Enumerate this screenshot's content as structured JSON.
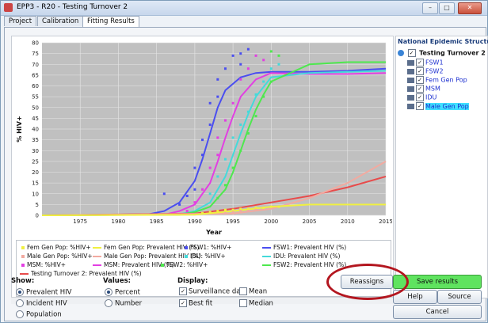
{
  "window": {
    "title": "EPP3 - R20 - Testing Turnover 2",
    "buttons": [
      "–",
      "□",
      "✕"
    ]
  },
  "tabs": [
    "Project",
    "Calibration",
    "Fitting Results"
  ],
  "active_tab": "Fitting Results",
  "chart_data": {
    "type": "line",
    "title": "",
    "xlabel": "Year",
    "ylabel": "% HIV+",
    "xlim": [
      1970,
      2015
    ],
    "ylim": [
      0,
      80
    ],
    "xticks": [
      1975,
      1980,
      1985,
      1990,
      1995,
      2000,
      2005,
      2010,
      2015
    ],
    "yticks": [
      0,
      5,
      10,
      15,
      20,
      25,
      30,
      35,
      40,
      45,
      50,
      55,
      60,
      65,
      70,
      75,
      80
    ],
    "grid": true,
    "series": [
      {
        "name": "FSW1: Prevalent HIV (%)",
        "color": "#4a4ef0",
        "x": [
          1970,
          1984,
          1986,
          1988,
          1990,
          1991,
          1992,
          1993,
          1994,
          1996,
          1998,
          2000,
          2005,
          2010,
          2015
        ],
        "y": [
          0,
          0.5,
          2,
          6,
          16,
          26,
          38,
          50,
          58,
          64,
          66,
          66.5,
          66.5,
          67,
          68
        ]
      },
      {
        "name": "MSM: Prevalent HIV (%)",
        "color": "#e23fe2",
        "x": [
          1970,
          1986,
          1988,
          1990,
          1992,
          1993,
          1994,
          1995,
          1996,
          1998,
          2000,
          2005,
          2010,
          2015
        ],
        "y": [
          0,
          0.3,
          2,
          5,
          15,
          25,
          36,
          46,
          55,
          63,
          66,
          65.5,
          65.5,
          66
        ]
      },
      {
        "name": "IDU: Prevalent HIV (%)",
        "color": "#44dada",
        "x": [
          1970,
          1988,
          1990,
          1992,
          1994,
          1995,
          1996,
          1997,
          1998,
          2000,
          2005,
          2010,
          2015
        ],
        "y": [
          0,
          0.5,
          2,
          6,
          18,
          28,
          38,
          47,
          55,
          64,
          66,
          66.5,
          67
        ]
      },
      {
        "name": "FSW2: Prevalent HIV (%)",
        "color": "#4ee84e",
        "x": [
          1970,
          1988,
          1990,
          1992,
          1994,
          1995,
          1996,
          1997,
          1998,
          1999,
          2000,
          2005,
          2010,
          2015
        ],
        "y": [
          0,
          0.3,
          1.5,
          4,
          12,
          20,
          30,
          40,
          49,
          56,
          62,
          70,
          71,
          71
        ]
      },
      {
        "name": "Testing Turnover 2: Prevalent HIV (%)",
        "color": "#e84b4b",
        "x": [
          1970,
          1990,
          1995,
          2000,
          2005,
          2010,
          2015
        ],
        "y": [
          0,
          0.8,
          3,
          6,
          9,
          13,
          18
        ]
      },
      {
        "name": "Male Gen Pop: Prevalent HIV (%)",
        "color": "#f2aaa0",
        "x": [
          1970,
          1995,
          2000,
          2005,
          2010,
          2015
        ],
        "y": [
          0,
          0.8,
          3,
          8,
          15,
          25
        ]
      },
      {
        "name": "Fem Gen Pop: Prevalent HIV (%)",
        "color": "#f0f040",
        "x": [
          1970,
          1990,
          1995,
          2000,
          2005,
          2010,
          2015
        ],
        "y": [
          0,
          0.3,
          2,
          4,
          5,
          5,
          5
        ]
      }
    ],
    "scatter": [
      {
        "name": "FSW1: %HIV+",
        "color": "#4a4ef0",
        "points": [
          [
            1986,
            10
          ],
          [
            1988,
            5
          ],
          [
            1989,
            9
          ],
          [
            1990,
            12
          ],
          [
            1990,
            22
          ],
          [
            1991,
            28
          ],
          [
            1991,
            35
          ],
          [
            1992,
            42
          ],
          [
            1992,
            52
          ],
          [
            1993,
            55
          ],
          [
            1993,
            63
          ],
          [
            1994,
            68
          ],
          [
            1995,
            74
          ],
          [
            1996,
            75
          ],
          [
            1996,
            70
          ],
          [
            1997,
            77
          ]
        ]
      },
      {
        "name": "MSM: %HIV+",
        "color": "#e23fe2",
        "points": [
          [
            1989,
            2
          ],
          [
            1990,
            6
          ],
          [
            1991,
            12
          ],
          [
            1992,
            22
          ],
          [
            1993,
            28
          ],
          [
            1993,
            36
          ],
          [
            1994,
            44
          ],
          [
            1995,
            52
          ],
          [
            1996,
            63
          ],
          [
            1997,
            68
          ],
          [
            1998,
            74
          ],
          [
            1999,
            72
          ]
        ]
      },
      {
        "name": "IDU: %HIV+",
        "color": "#44dada",
        "points": [
          [
            1992,
            10
          ],
          [
            1993,
            18
          ],
          [
            1994,
            26
          ],
          [
            1995,
            36
          ],
          [
            1996,
            42
          ],
          [
            1997,
            48
          ],
          [
            1998,
            56
          ],
          [
            1999,
            62
          ],
          [
            2000,
            68
          ],
          [
            2001,
            70
          ]
        ]
      },
      {
        "name": "FSW2: %HIV+",
        "color": "#4ee84e",
        "points": [
          [
            1993,
            8
          ],
          [
            1994,
            14
          ],
          [
            1995,
            22
          ],
          [
            1996,
            30
          ],
          [
            1997,
            38
          ],
          [
            1998,
            46
          ],
          [
            1999,
            55
          ],
          [
            2000,
            62
          ],
          [
            2000,
            76
          ],
          [
            2001,
            74
          ]
        ]
      },
      {
        "name": "Fem Gen Pop: %HIV+",
        "color": "#f0f040",
        "points": [
          [
            1991,
            1
          ],
          [
            1992,
            1.5
          ],
          [
            1993,
            2
          ],
          [
            1994,
            2.5
          ],
          [
            1995,
            2.5
          ],
          [
            1996,
            3
          ],
          [
            1997,
            3
          ],
          [
            1998,
            3.5
          ],
          [
            1999,
            3.5
          ],
          [
            2000,
            4
          ],
          [
            2001,
            4
          ]
        ]
      },
      {
        "name": "Male Gen Pop: %HIV+",
        "color": "#f2aaa0",
        "points": [
          [
            1994,
            1
          ],
          [
            1995,
            1.5
          ],
          [
            1996,
            2
          ],
          [
            1997,
            2
          ],
          [
            1998,
            2.5
          ]
        ]
      }
    ]
  },
  "legend": [
    {
      "label": "Fem Gen Pop: %HIV+",
      "color": "#f0f040",
      "kind": "dot"
    },
    {
      "label": "Fem Gen Pop: Prevalent HIV (%)",
      "color": "#f0f040",
      "kind": "line"
    },
    {
      "label": "FSW1: %HIV+",
      "color": "#4a4ef0",
      "kind": "dot"
    },
    {
      "label": "FSW1: Prevalent HIV (%)",
      "color": "#4a4ef0",
      "kind": "line"
    },
    {
      "label": "Male Gen Pop: %HIV+",
      "color": "#f2aaa0",
      "kind": "dot"
    },
    {
      "label": "Male Gen Pop: Prevalent HIV (%)",
      "color": "#f2aaa0",
      "kind": "line"
    },
    {
      "label": "IDU: %HIV+",
      "color": "#44dada",
      "kind": "dot"
    },
    {
      "label": "IDU: Prevalent HIV (%)",
      "color": "#44dada",
      "kind": "line"
    },
    {
      "label": "MSM: %HIV+",
      "color": "#e23fe2",
      "kind": "dot"
    },
    {
      "label": "MSM: Prevalent HIV (%)",
      "color": "#e23fe2",
      "kind": "line"
    },
    {
      "label": "FSW2: %HIV+",
      "color": "#4ee84e",
      "kind": "dot"
    },
    {
      "label": "FSW2: Prevalent HIV (%)",
      "color": "#4ee84e",
      "kind": "line"
    },
    {
      "label": "Testing Turnover 2: Prevalent HIV (%)",
      "color": "#e84b4b",
      "kind": "line"
    }
  ],
  "tree": {
    "title": "National Epidemic Structure",
    "root": "Testing Turnover 2",
    "children": [
      "FSW1",
      "FSW2",
      "Fem Gen Pop",
      "MSM",
      "IDU",
      "Male Gen Pop"
    ],
    "selected": "Male Gen Pop"
  },
  "show": {
    "label": "Show:",
    "options": [
      "Prevalent HIV",
      "Incident HIV",
      "Population"
    ],
    "selected": "Prevalent HIV"
  },
  "values": {
    "label": "Values:",
    "options": [
      "Percent",
      "Number"
    ],
    "selected": "Percent"
  },
  "display": {
    "label": "Display:",
    "options": [
      {
        "label": "Surveillance data",
        "checked": true
      },
      {
        "label": "Mean",
        "checked": false
      },
      {
        "label": "Best fit",
        "checked": true
      },
      {
        "label": "Median",
        "checked": false
      }
    ]
  },
  "buttons": {
    "reassign": "Reassigns",
    "save": "Save results",
    "help": "Help",
    "source": "Source",
    "cancel": "Cancel"
  }
}
